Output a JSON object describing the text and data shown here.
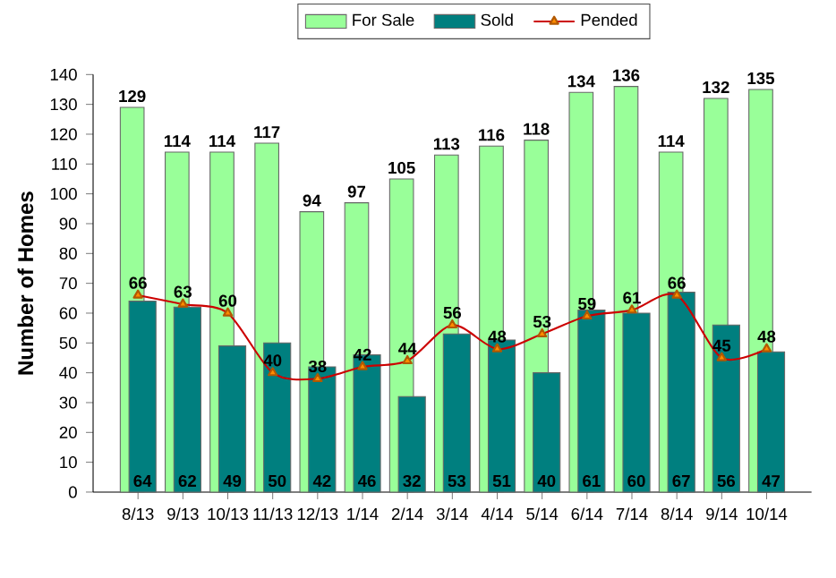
{
  "chart_data": {
    "type": "bar",
    "ylabel": "Number of Homes",
    "categories": [
      "8/13",
      "9/13",
      "10/13",
      "11/13",
      "12/13",
      "1/14",
      "2/14",
      "3/14",
      "4/14",
      "5/14",
      "6/14",
      "7/14",
      "8/14",
      "9/14",
      "10/14"
    ],
    "series": [
      {
        "name": "For Sale",
        "color": "#99ff99",
        "values": [
          129,
          114,
          114,
          117,
          94,
          97,
          105,
          113,
          116,
          118,
          134,
          136,
          114,
          132,
          135
        ]
      },
      {
        "name": "Sold",
        "color": "#007f7f",
        "values": [
          64,
          62,
          49,
          50,
          42,
          46,
          32,
          53,
          51,
          40,
          61,
          60,
          67,
          56,
          47
        ]
      },
      {
        "name": "Pended",
        "type": "line",
        "color": "#cc0000",
        "values": [
          66,
          63,
          60,
          40,
          38,
          42,
          44,
          56,
          48,
          53,
          59,
          61,
          66,
          45,
          48
        ]
      }
    ],
    "ylim": [
      0,
      140
    ],
    "yticks": [
      0,
      10,
      20,
      30,
      40,
      50,
      60,
      70,
      80,
      90,
      100,
      110,
      120,
      130,
      140
    ],
    "data_labels": true,
    "legend": "top",
    "marker": "triangle"
  }
}
